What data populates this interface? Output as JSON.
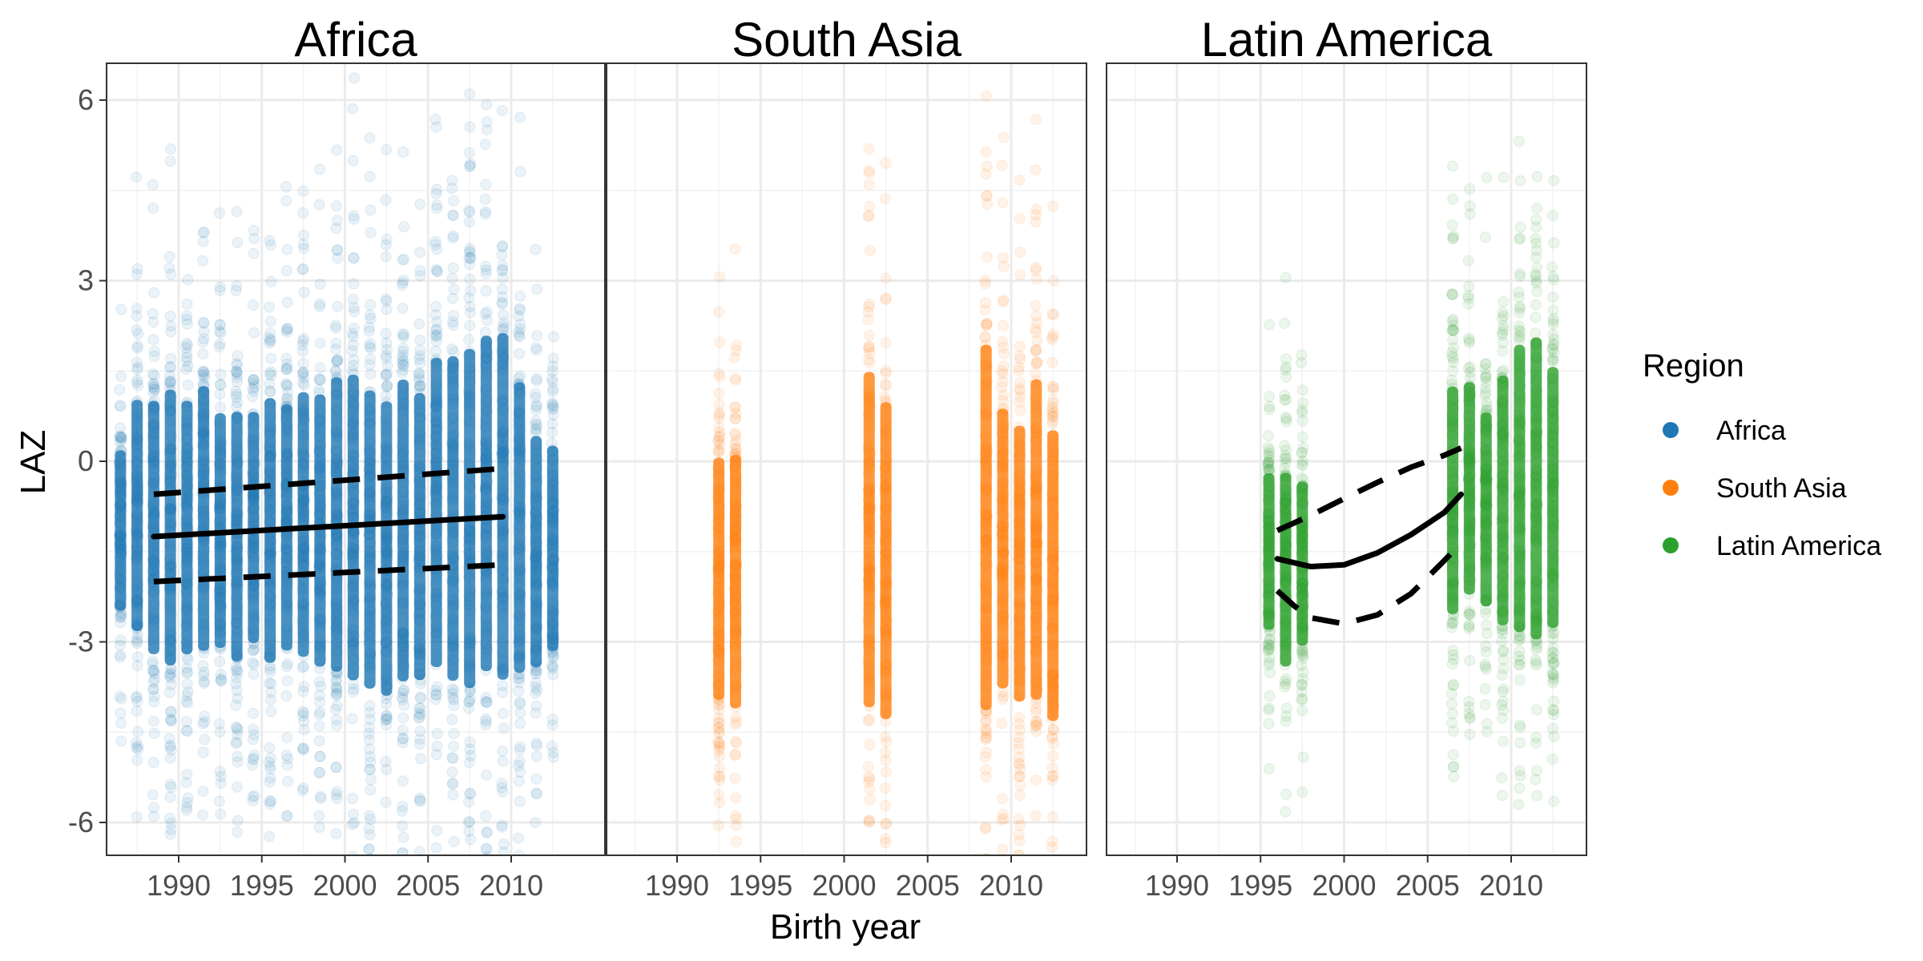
{
  "chart_data": {
    "type": "scatter",
    "xlabel": "Birth year",
    "ylabel": "LAZ",
    "xlim": [
      1985.5,
      2013.5
    ],
    "ylim": [
      -6.55,
      6.6
    ],
    "x_ticks": [
      1990,
      1995,
      2000,
      2005,
      2010
    ],
    "y_ticks": [
      6,
      3,
      0,
      -3,
      -6
    ],
    "y_tick_labels": [
      "6",
      "3",
      "0",
      "-3",
      "-6"
    ],
    "grid": true,
    "legend": {
      "title": "Region",
      "placement": "right",
      "entries": [
        "Africa",
        "South Asia",
        "Latin America"
      ]
    },
    "colors": {
      "Africa": "#1f77b4",
      "South Asia": "#ff7f0e",
      "Latin America": "#2ca02c",
      "fit_line": "#000000"
    },
    "panels": [
      {
        "title": "Africa",
        "series": "Africa",
        "point_columns": [
          {
            "x": 1986.5,
            "ymin": -3.3,
            "ymax": 1.0
          },
          {
            "x": 1987.5,
            "ymin": -4.0,
            "ymax": 2.2
          },
          {
            "x": 1988.5,
            "ymin": -4.5,
            "ymax": 2.3
          },
          {
            "x": 1989.5,
            "ymin": -4.8,
            "ymax": 2.6
          },
          {
            "x": 1990.5,
            "ymin": -4.5,
            "ymax": 2.3
          },
          {
            "x": 1991.5,
            "ymin": -4.5,
            "ymax": 2.6
          },
          {
            "x": 1992.5,
            "ymin": -4.3,
            "ymax": 2.0
          },
          {
            "x": 1993.5,
            "ymin": -4.6,
            "ymax": 2.1
          },
          {
            "x": 1994.5,
            "ymin": -4.2,
            "ymax": 2.0
          },
          {
            "x": 1995.5,
            "ymin": -4.7,
            "ymax": 2.4
          },
          {
            "x": 1996.5,
            "ymin": -4.4,
            "ymax": 2.2
          },
          {
            "x": 1997.5,
            "ymin": -4.6,
            "ymax": 2.5
          },
          {
            "x": 1998.5,
            "ymin": -4.8,
            "ymax": 2.5
          },
          {
            "x": 1999.5,
            "ymin": -5.0,
            "ymax": 2.9
          },
          {
            "x": 2000.5,
            "ymin": -5.2,
            "ymax": 3.0
          },
          {
            "x": 2001.5,
            "ymin": -5.3,
            "ymax": 2.7
          },
          {
            "x": 2002.5,
            "ymin": -5.4,
            "ymax": 2.5
          },
          {
            "x": 2003.5,
            "ymin": -5.2,
            "ymax": 2.9
          },
          {
            "x": 2004.5,
            "ymin": -5.1,
            "ymax": 2.6
          },
          {
            "x": 2005.5,
            "ymin": -5.0,
            "ymax": 3.3
          },
          {
            "x": 2006.5,
            "ymin": -5.3,
            "ymax": 3.4
          },
          {
            "x": 2007.5,
            "ymin": -5.5,
            "ymax": 3.6
          },
          {
            "x": 2008.5,
            "ymin": -5.2,
            "ymax": 3.8
          },
          {
            "x": 2009.5,
            "ymin": -5.4,
            "ymax": 3.9
          },
          {
            "x": 2010.5,
            "ymin": -5.0,
            "ymax": 2.8
          },
          {
            "x": 2011.5,
            "ymin": -4.6,
            "ymax": 1.6
          },
          {
            "x": 2012.5,
            "ymin": -4.2,
            "ymax": 1.3
          }
        ],
        "fit": {
          "x": [
            1988.5,
            2009.5
          ],
          "y": [
            -1.25,
            -0.92
          ]
        },
        "lower": {
          "x": [
            1988.5,
            2009.5
          ],
          "y": [
            -2.0,
            -1.72
          ]
        },
        "upper": {
          "x": [
            1988.5,
            2009.5
          ],
          "y": [
            -0.55,
            -0.12
          ]
        }
      },
      {
        "title": "South Asia",
        "series": "South Asia",
        "point_columns": [
          {
            "x": 1992.5,
            "ymin": -5.2,
            "ymax": 1.3
          },
          {
            "x": 1993.5,
            "ymin": -5.4,
            "ymax": 1.4
          },
          {
            "x": 2001.5,
            "ymin": -5.8,
            "ymax": 3.2
          },
          {
            "x": 2002.5,
            "ymin": -5.9,
            "ymax": 2.6
          },
          {
            "x": 2008.5,
            "ymin": -6.0,
            "ymax": 3.8
          },
          {
            "x": 2009.5,
            "ymin": -5.2,
            "ymax": 2.3
          },
          {
            "x": 2010.5,
            "ymin": -5.4,
            "ymax": 2.0
          },
          {
            "x": 2011.5,
            "ymin": -5.6,
            "ymax": 3.0
          },
          {
            "x": 2012.5,
            "ymin": -5.8,
            "ymax": 2.0
          }
        ]
      },
      {
        "title": "Latin America",
        "series": "Latin America",
        "point_columns": [
          {
            "x": 1995.5,
            "ymin": -3.6,
            "ymax": 0.6
          },
          {
            "x": 1996.5,
            "ymin": -4.4,
            "ymax": 0.8
          },
          {
            "x": 1997.5,
            "ymin": -3.9,
            "ymax": 0.5
          },
          {
            "x": 2006.5,
            "ymin": -3.7,
            "ymax": 2.4
          },
          {
            "x": 2007.5,
            "ymin": -3.3,
            "ymax": 2.4
          },
          {
            "x": 2008.5,
            "ymin": -3.4,
            "ymax": 1.8
          },
          {
            "x": 2009.5,
            "ymin": -4.0,
            "ymax": 2.7
          },
          {
            "x": 2010.5,
            "ymin": -4.3,
            "ymax": 3.4
          },
          {
            "x": 2011.5,
            "ymin": -4.5,
            "ymax": 3.6
          },
          {
            "x": 2012.5,
            "ymin": -4.1,
            "ymax": 2.9
          }
        ],
        "fit": {
          "x": [
            1996,
            1998,
            2000,
            2002,
            2004,
            2006,
            2007
          ],
          "y": [
            -1.62,
            -1.75,
            -1.72,
            -1.52,
            -1.22,
            -0.85,
            -0.55
          ]
        },
        "lower": {
          "x": [
            1996,
            1997,
            1998,
            2000,
            2002,
            2004,
            2006,
            2006.5
          ],
          "y": [
            -2.15,
            -2.4,
            -2.6,
            -2.7,
            -2.55,
            -2.2,
            -1.65,
            -1.5
          ]
        },
        "upper": {
          "x": [
            1996,
            1998,
            2000,
            2002,
            2004,
            2006,
            2007
          ],
          "y": [
            -1.15,
            -0.9,
            -0.62,
            -0.35,
            -0.1,
            0.1,
            0.22
          ]
        }
      }
    ]
  }
}
